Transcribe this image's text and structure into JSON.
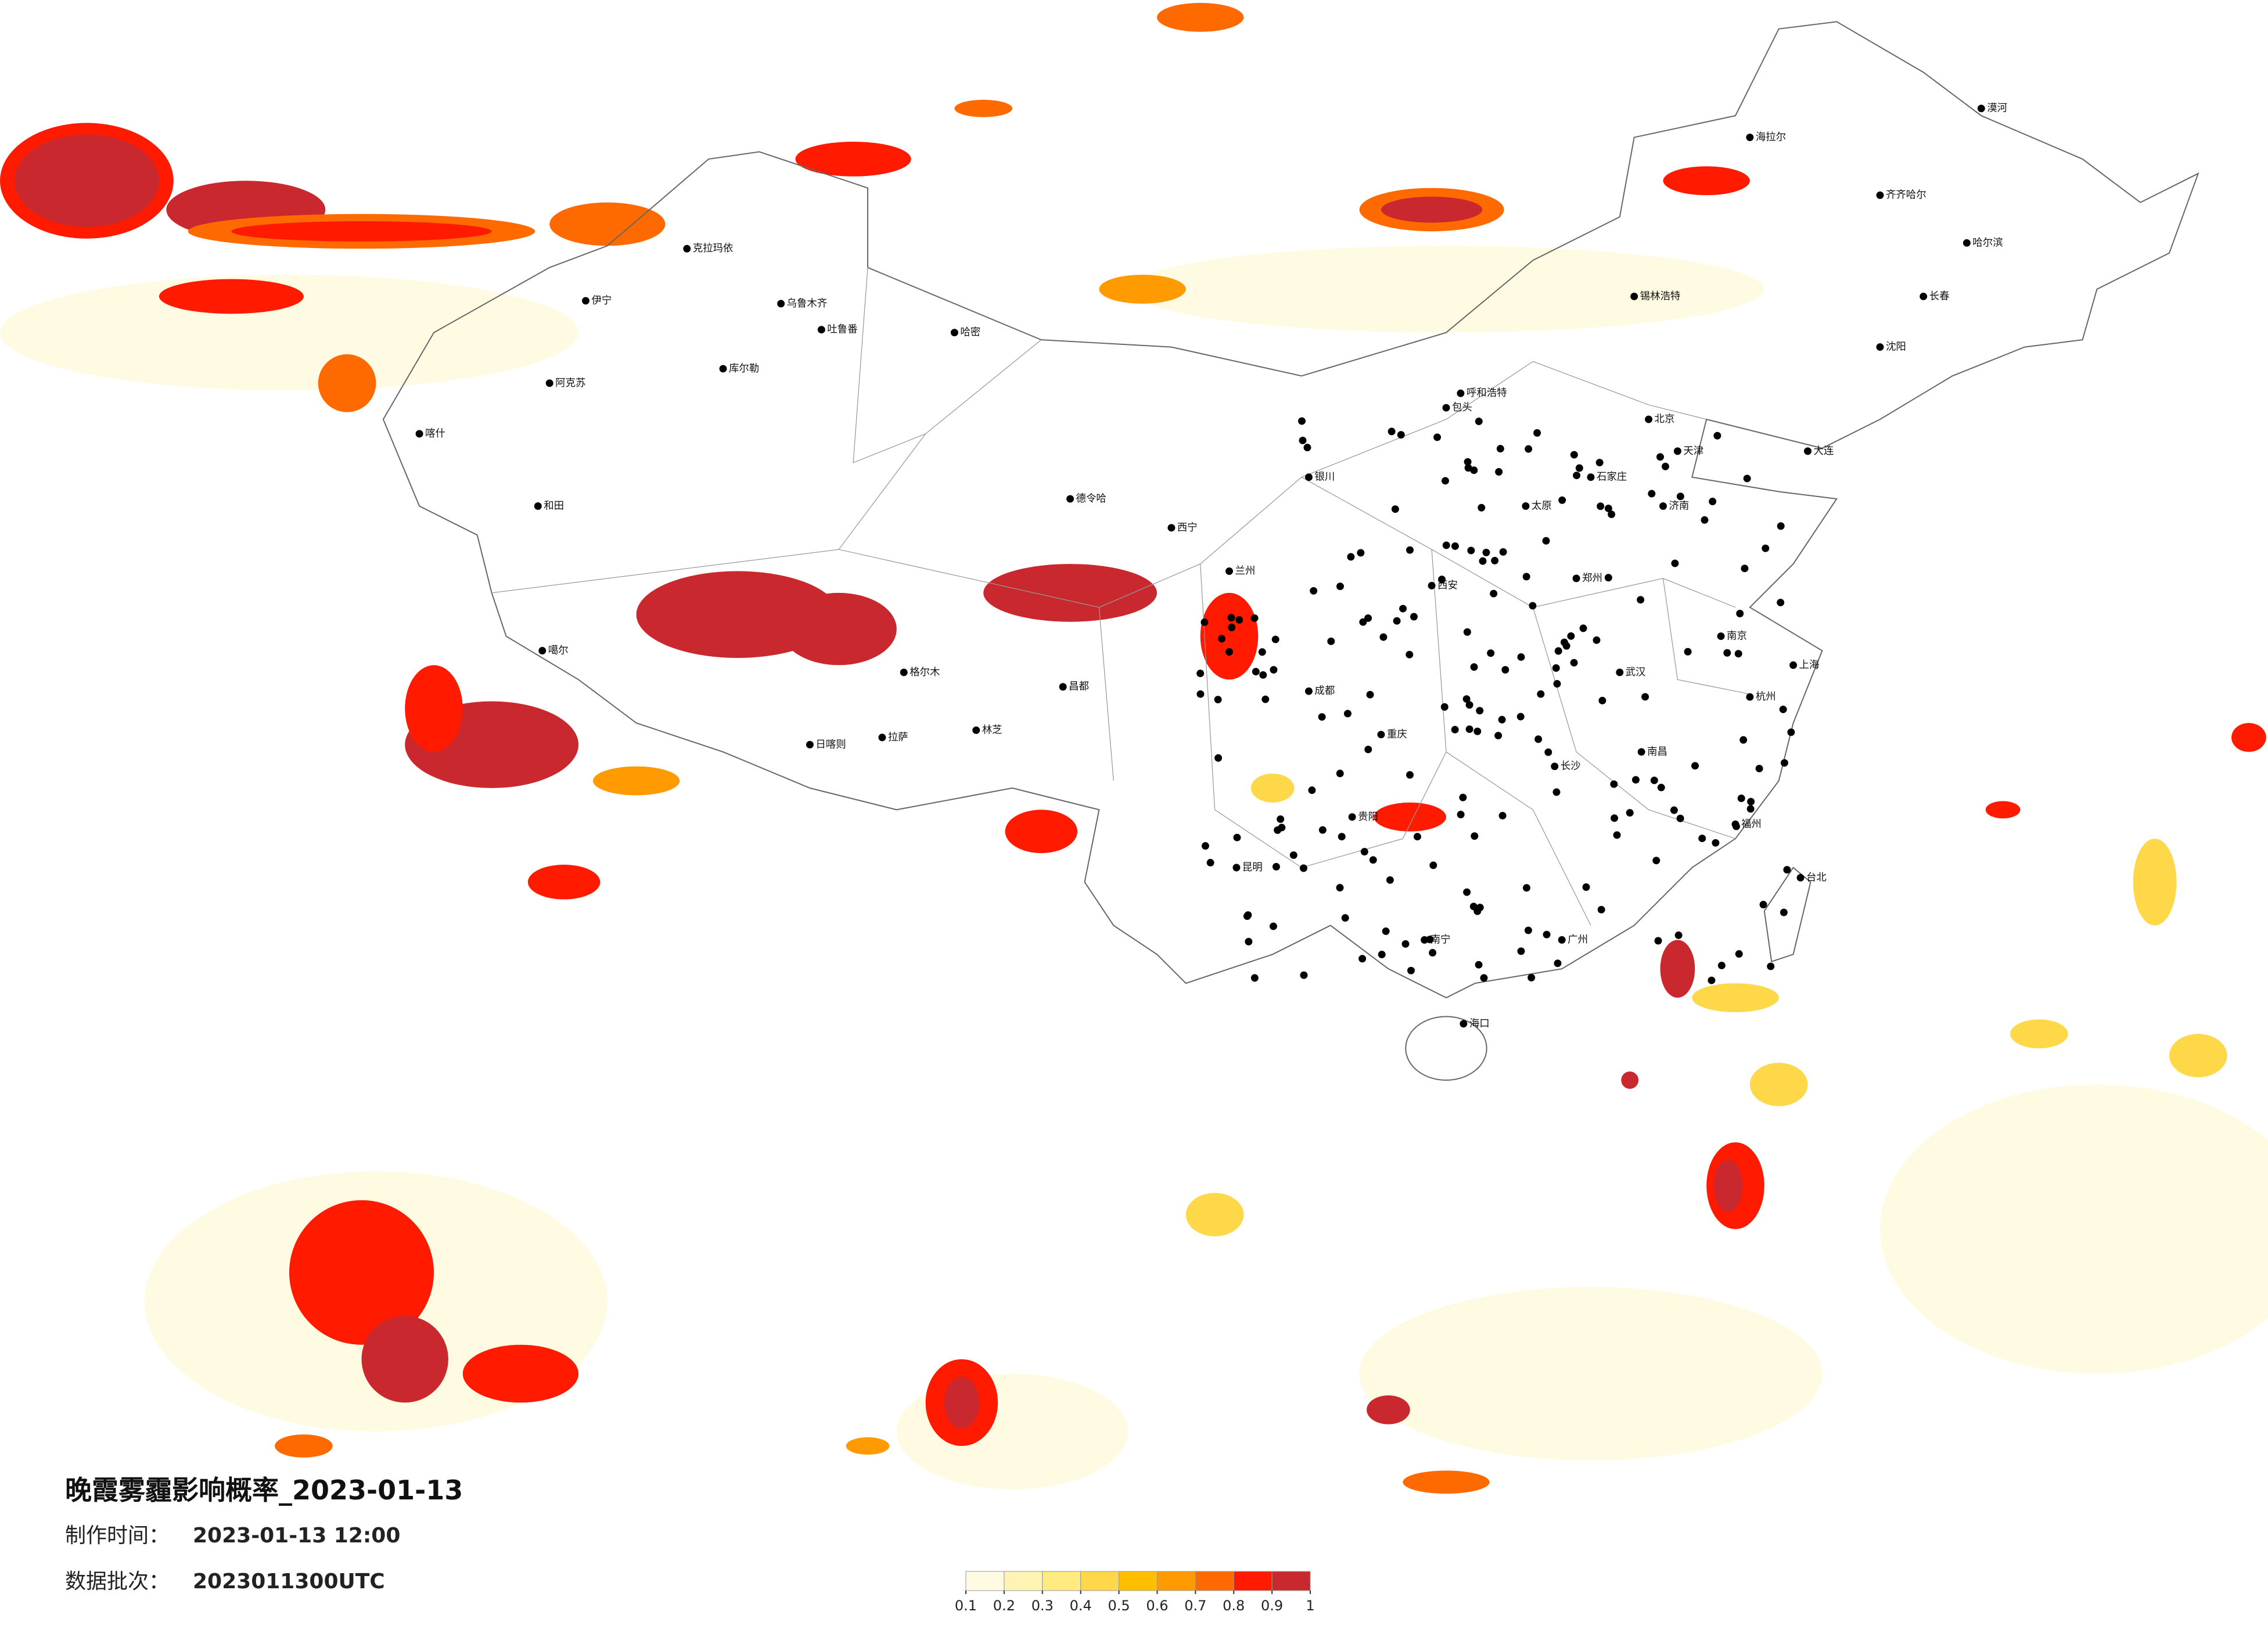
{
  "title": "晚霞雾霾影响概率_2023-01-13",
  "meta": {
    "made_label": "制作时间：",
    "made_value": "2023-01-13 12:00",
    "batch_label": "数据批次：",
    "batch_value": "2023011300UTC"
  },
  "legend": {
    "ticks": [
      0.1,
      0.2,
      0.3,
      0.4,
      0.5,
      0.6,
      0.7,
      0.8,
      0.9,
      1
    ],
    "colors": [
      "#fffbe3",
      "#fff4b3",
      "#ffeb80",
      "#ffd84a",
      "#ffbf00",
      "#ff9a00",
      "#ff6a00",
      "#ff1a00",
      "#c8282e"
    ]
  },
  "cities": [
    "乌鲁木齐",
    "克拉玛依",
    "伊宁",
    "哈密",
    "吐鲁番",
    "库尔勒",
    "阿克苏",
    "喀什",
    "和田",
    "噶尔",
    "拉萨",
    "日喀则",
    "林芝",
    "昌都",
    "格尔木",
    "德令哈",
    "西宁",
    "兰州",
    "银川",
    "呼和浩特",
    "包头",
    "北京",
    "天津",
    "石家庄",
    "太原",
    "济南",
    "郑州",
    "西安",
    "成都",
    "重庆",
    "武汉",
    "南京",
    "上海",
    "杭州",
    "长沙",
    "南昌",
    "福州",
    "广州",
    "南宁",
    "贵阳",
    "昆明",
    "海口",
    "台北",
    "哈尔滨",
    "长春",
    "沈阳",
    "大连",
    "齐齐哈尔",
    "海拉尔",
    "漠河",
    "锡林浩特"
  ]
}
